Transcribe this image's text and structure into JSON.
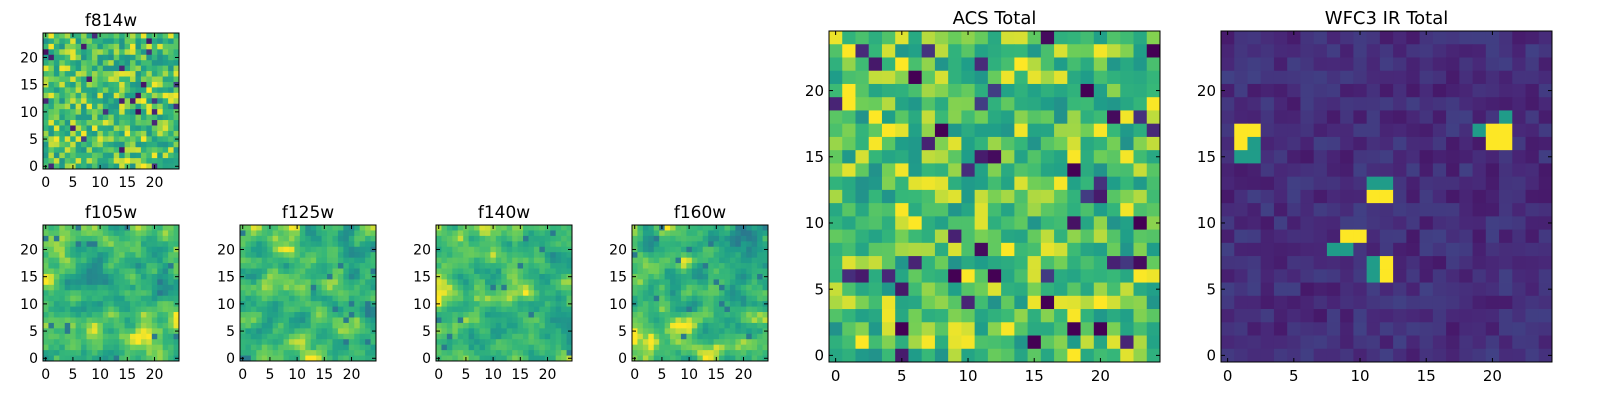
{
  "chart_data": [
    {
      "type": "heatmap",
      "title": "f814w",
      "grid_size": 25,
      "colormap": "viridis",
      "xticks": [
        "0",
        "5",
        "10",
        "15",
        "20"
      ],
      "yticks": [
        "0",
        "5",
        "10",
        "15",
        "20"
      ],
      "value_range": [
        0,
        1
      ],
      "character": "uniform random noise, mostly green-yellow with scattered dark pixels"
    },
    {
      "type": "heatmap",
      "title": "f105w",
      "grid_size": 25,
      "colormap": "viridis",
      "xticks": [
        "0",
        "5",
        "10",
        "15",
        "20"
      ],
      "yticks": [
        "0",
        "5",
        "10",
        "15",
        "20"
      ],
      "value_range": [
        0,
        1
      ],
      "character": "smoothed noise, yellow-green with a few dark pixels"
    },
    {
      "type": "heatmap",
      "title": "f125w",
      "grid_size": 25,
      "colormap": "viridis",
      "xticks": [
        "0",
        "5",
        "10",
        "15",
        "20"
      ],
      "yticks": [
        "0",
        "5",
        "10",
        "15",
        "20"
      ],
      "value_range": [
        0,
        1
      ],
      "character": "smoothed noise, yellow-green with dark specks"
    },
    {
      "type": "heatmap",
      "title": "f140w",
      "grid_size": 25,
      "colormap": "viridis",
      "xticks": [
        "0",
        "5",
        "10",
        "15",
        "20"
      ],
      "yticks": [
        "0",
        "5",
        "10",
        "15",
        "20"
      ],
      "value_range": [
        0,
        1
      ],
      "character": "smoothed noise, brighter on the left side"
    },
    {
      "type": "heatmap",
      "title": "f160w",
      "grid_size": 25,
      "colormap": "viridis",
      "xticks": [
        "0",
        "5",
        "10",
        "15",
        "20"
      ],
      "yticks": [
        "0",
        "5",
        "10",
        "15",
        "20"
      ],
      "value_range": [
        0,
        1
      ],
      "character": "smoothed noise, bright top-left fading to teal-blue lower right"
    },
    {
      "type": "heatmap",
      "title": "ACS Total",
      "grid_size": 25,
      "colormap": "viridis",
      "xticks": [
        "0",
        "5",
        "10",
        "15",
        "20"
      ],
      "yticks": [
        "0",
        "5",
        "10",
        "15",
        "20"
      ],
      "value_range": [
        0,
        1
      ],
      "character": "uniform noise, green-yellow with a few dark pixels",
      "dark_pixels": [
        [
          24,
          23
        ],
        [
          6,
          21
        ],
        [
          8,
          17
        ],
        [
          18,
          14
        ],
        [
          23,
          10
        ],
        [
          5,
          2
        ],
        [
          18,
          2
        ],
        [
          15,
          1
        ],
        [
          20,
          2
        ],
        [
          12,
          6
        ],
        [
          9,
          6
        ],
        [
          19,
          20
        ],
        [
          16,
          4
        ]
      ],
      "bright_pixels": [
        [
          1,
          20
        ],
        [
          3,
          18
        ],
        [
          4,
          17
        ],
        [
          6,
          10
        ],
        [
          18,
          0
        ],
        [
          20,
          4
        ],
        [
          2,
          1
        ],
        [
          1,
          23
        ],
        [
          5,
          22
        ],
        [
          14,
          22
        ]
      ]
    },
    {
      "type": "heatmap",
      "title": "WFC3 IR Total",
      "grid_size": 25,
      "colormap": "viridis",
      "xticks": [
        "0",
        "5",
        "10",
        "15",
        "20"
      ],
      "yticks": [
        "0",
        "5",
        "10",
        "15",
        "20"
      ],
      "value_range": [
        0,
        1
      ],
      "character": "dark blue background with a few bright point sources",
      "bright_pixels": [
        [
          1,
          16
        ],
        [
          1,
          17
        ],
        [
          2,
          17
        ],
        [
          20,
          16
        ],
        [
          21,
          16
        ],
        [
          20,
          17
        ],
        [
          21,
          17
        ],
        [
          11,
          12
        ],
        [
          12,
          12
        ],
        [
          9,
          9
        ],
        [
          10,
          9
        ],
        [
          12,
          7
        ],
        [
          12,
          6
        ]
      ],
      "mid_pixels": [
        [
          2,
          16
        ],
        [
          1,
          15
        ],
        [
          2,
          15
        ],
        [
          19,
          17
        ],
        [
          11,
          13
        ],
        [
          12,
          13
        ],
        [
          8,
          8
        ],
        [
          9,
          8
        ],
        [
          11,
          7
        ],
        [
          11,
          6
        ],
        [
          21,
          18
        ]
      ]
    }
  ]
}
